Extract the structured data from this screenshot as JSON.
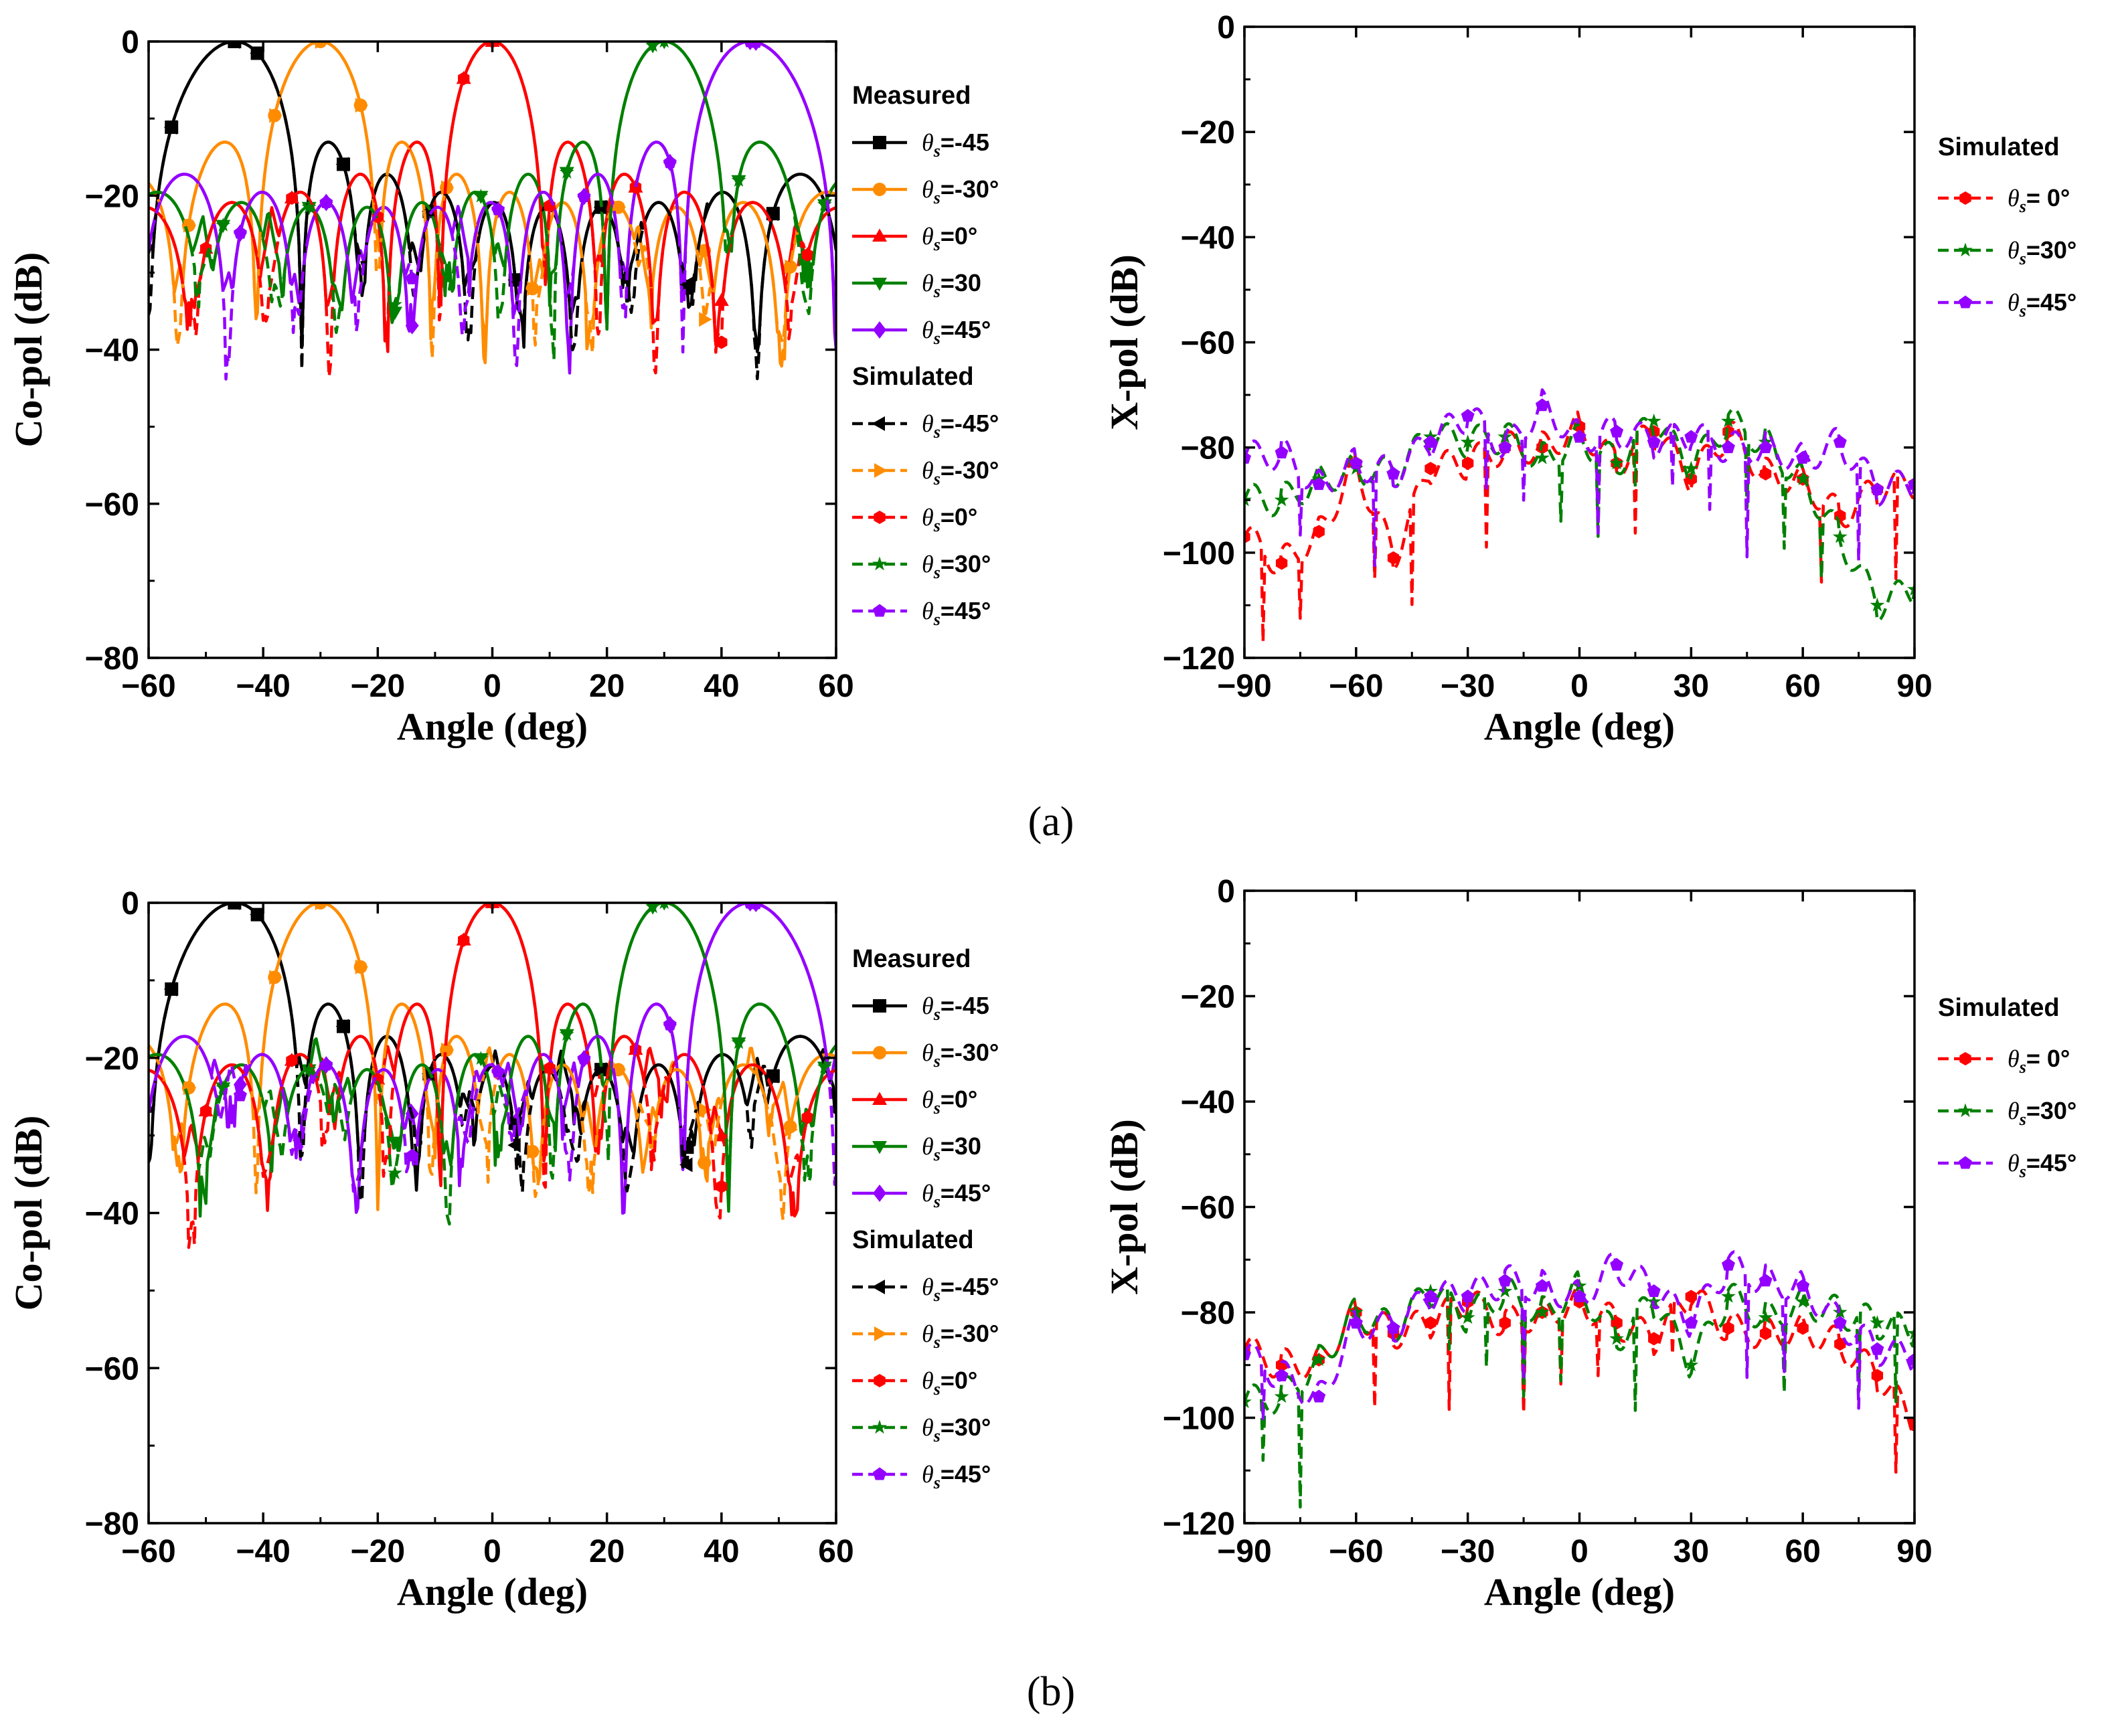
{
  "panel_a_caption": "(a)",
  "panel_b_caption": "(b)",
  "colors": {
    "theta_m45": "#000000",
    "theta_m30": "#ff8c00",
    "theta_0": "#ff0000",
    "theta_30": "#008000",
    "theta_45": "#9400ff"
  },
  "chart_data": [
    {
      "id": "a-copol",
      "type": "line",
      "panel": "(a)",
      "title": "",
      "xlabel": "Angle (deg)",
      "ylabel": "Co-pol (dB)",
      "xlim": [
        -60,
        60
      ],
      "ylim": [
        -80,
        0
      ],
      "xticks": [
        -60,
        -40,
        -20,
        0,
        20,
        40,
        60
      ],
      "yticks": [
        -80,
        -60,
        -40,
        -20,
        0
      ],
      "xtick_labels": [
        "−60",
        "−40",
        "−20",
        "0",
        "20",
        "40",
        "60"
      ],
      "ytick_labels": [
        "−80",
        "−60",
        "−40",
        "−20",
        "0"
      ],
      "legend": {
        "position": "right",
        "groups": [
          {
            "title": "Measured",
            "entries": [
              {
                "symbol": "θ",
                "sub": "s",
                "label": "=-45",
                "color": "#000000",
                "marker": "square",
                "dash": "solid"
              },
              {
                "symbol": "θ",
                "sub": "s",
                "label": "=-30°",
                "color": "#ff8c00",
                "marker": "circle",
                "dash": "solid"
              },
              {
                "symbol": "θ",
                "sub": "s",
                "label": "=0°",
                "color": "#ff0000",
                "marker": "triangle-up",
                "dash": "solid"
              },
              {
                "symbol": "θ",
                "sub": "s",
                "label": "=30",
                "color": "#008000",
                "marker": "triangle-down",
                "dash": "solid"
              },
              {
                "symbol": "θ",
                "sub": "s",
                "label": "=45°",
                "color": "#9400ff",
                "marker": "diamond",
                "dash": "solid"
              }
            ]
          },
          {
            "title": "Simulated",
            "entries": [
              {
                "symbol": "θ",
                "sub": "s",
                "label": "=-45°",
                "color": "#000000",
                "marker": "triangle-left",
                "dash": "dashed"
              },
              {
                "symbol": "θ",
                "sub": "s",
                "label": "=-30°",
                "color": "#ff8c00",
                "marker": "triangle-right",
                "dash": "dashed"
              },
              {
                "symbol": "θ",
                "sub": "s",
                "label": "=0°",
                "color": "#ff0000",
                "marker": "hexagon",
                "dash": "dashed"
              },
              {
                "symbol": "θ",
                "sub": "s",
                "label": "=30°",
                "color": "#008000",
                "marker": "star",
                "dash": "dashed"
              },
              {
                "symbol": "θ",
                "sub": "s",
                "label": "=45°",
                "color": "#9400ff",
                "marker": "pentagon",
                "dash": "dashed"
              }
            ]
          }
        ]
      },
      "series": [
        {
          "name": "Measured θs=-45",
          "color": "#000000",
          "dash": "solid",
          "marker": "square",
          "peak": -45,
          "sidelobe": -27,
          "seed": 1
        },
        {
          "name": "Measured θs=-30°",
          "color": "#ff8c00",
          "dash": "solid",
          "marker": "circle",
          "peak": -30,
          "sidelobe": -29,
          "seed": 2
        },
        {
          "name": "Measured θs=0°",
          "color": "#ff0000",
          "dash": "solid",
          "marker": "triangle-up",
          "peak": 0,
          "sidelobe": -28,
          "seed": 3
        },
        {
          "name": "Measured θs=30",
          "color": "#008000",
          "dash": "solid",
          "marker": "triangle-down",
          "peak": 30,
          "sidelobe": -27,
          "seed": 4
        },
        {
          "name": "Measured θs=45°",
          "color": "#9400ff",
          "dash": "solid",
          "marker": "diamond",
          "peak": 45,
          "sidelobe": -28,
          "seed": 5
        },
        {
          "name": "Simulated θs=-45°",
          "color": "#000000",
          "dash": "dashed",
          "marker": "triangle-left",
          "peak": -45,
          "sidelobe": -30,
          "seed": 6
        },
        {
          "name": "Simulated θs=-30°",
          "color": "#ff8c00",
          "dash": "dashed",
          "marker": "triangle-right",
          "peak": -30,
          "sidelobe": -31,
          "seed": 7
        },
        {
          "name": "Simulated θs=0°",
          "color": "#ff0000",
          "dash": "dashed",
          "marker": "hexagon",
          "peak": 0,
          "sidelobe": -31,
          "seed": 8
        },
        {
          "name": "Simulated θs=30°",
          "color": "#008000",
          "dash": "dashed",
          "marker": "star",
          "peak": 30,
          "sidelobe": -30,
          "seed": 9
        },
        {
          "name": "Simulated θs=45°",
          "color": "#9400ff",
          "dash": "dashed",
          "marker": "pentagon",
          "peak": 45,
          "sidelobe": -30,
          "seed": 10
        }
      ]
    },
    {
      "id": "a-xpol",
      "type": "line",
      "panel": "(a)",
      "title": "",
      "xlabel": "Angle (deg)",
      "ylabel": "X-pol (dB)",
      "xlim": [
        -90,
        90
      ],
      "ylim": [
        -120,
        0
      ],
      "xticks": [
        -90,
        -60,
        -30,
        0,
        30,
        60,
        90
      ],
      "yticks": [
        -120,
        -100,
        -80,
        -60,
        -40,
        -20,
        0
      ],
      "xtick_labels": [
        "−90",
        "−60",
        "−30",
        "0",
        "30",
        "60",
        "90"
      ],
      "ytick_labels": [
        "−120",
        "−100",
        "−80",
        "−60",
        "−40",
        "−20",
        "0"
      ],
      "legend": {
        "position": "right",
        "groups": [
          {
            "title": "Simulated",
            "entries": [
              {
                "symbol": "θ",
                "sub": "s",
                "label": "= 0°",
                "color": "#ff0000",
                "marker": "hexagon",
                "dash": "dashed"
              },
              {
                "symbol": "θ",
                "sub": "s",
                "label": "=30°",
                "color": "#008000",
                "marker": "star",
                "dash": "dashed"
              },
              {
                "symbol": "θ",
                "sub": "s",
                "label": "=45°",
                "color": "#9400ff",
                "marker": "pentagon",
                "dash": "dashed"
              }
            ]
          }
        ]
      },
      "series": [
        {
          "name": "Simulated θs=0°",
          "color": "#ff0000",
          "dash": "dashed",
          "marker": "hexagon",
          "seed": 11,
          "x": [
            -90,
            -80,
            -70,
            -60,
            -50,
            -40,
            -30,
            -20,
            -10,
            0,
            10,
            20,
            30,
            40,
            50,
            60,
            70,
            80,
            90
          ],
          "y": [
            -97,
            -102,
            -96,
            -83,
            -101,
            -84,
            -83,
            -80,
            -80,
            -76,
            -83,
            -77,
            -86,
            -77,
            -85,
            -86,
            -93,
            -88,
            -87
          ]
        },
        {
          "name": "Simulated θs=30°",
          "color": "#008000",
          "dash": "dashed",
          "marker": "star",
          "seed": 12,
          "x": [
            -90,
            -80,
            -70,
            -60,
            -50,
            -40,
            -30,
            -20,
            -10,
            0,
            10,
            20,
            30,
            40,
            50,
            60,
            70,
            80,
            90
          ],
          "y": [
            -90,
            -90,
            -86,
            -84,
            -85,
            -78,
            -79,
            -78,
            -82,
            -78,
            -83,
            -75,
            -84,
            -75,
            -79,
            -86,
            -97,
            -110,
            -107
          ]
        },
        {
          "name": "Simulated θs=45°",
          "color": "#9400ff",
          "dash": "dashed",
          "marker": "pentagon",
          "seed": 13,
          "x": [
            -90,
            -80,
            -70,
            -60,
            -50,
            -40,
            -30,
            -20,
            -10,
            0,
            10,
            20,
            30,
            40,
            50,
            60,
            70,
            80,
            90
          ],
          "y": [
            -82,
            -81,
            -87,
            -83,
            -85,
            -79,
            -74,
            -80,
            -72,
            -78,
            -77,
            -79,
            -78,
            -80,
            -80,
            -82,
            -79,
            -88,
            -87
          ]
        }
      ]
    },
    {
      "id": "b-copol",
      "type": "line",
      "panel": "(b)",
      "title": "",
      "xlabel": "Angle (deg)",
      "ylabel": "Co-pol (dB)",
      "xlim": [
        -60,
        60
      ],
      "ylim": [
        -80,
        0
      ],
      "xticks": [
        -60,
        -40,
        -20,
        0,
        20,
        40,
        60
      ],
      "yticks": [
        -80,
        -60,
        -40,
        -20,
        0
      ],
      "xtick_labels": [
        "−60",
        "−40",
        "−20",
        "0",
        "20",
        "40",
        "60"
      ],
      "ytick_labels": [
        "−80",
        "−60",
        "−40",
        "−20",
        "0"
      ],
      "legend": {
        "position": "right",
        "groups": [
          {
            "title": "Measured",
            "entries": [
              {
                "symbol": "θ",
                "sub": "s",
                "label": "=-45",
                "color": "#000000",
                "marker": "square",
                "dash": "solid"
              },
              {
                "symbol": "θ",
                "sub": "s",
                "label": "=-30°",
                "color": "#ff8c00",
                "marker": "circle",
                "dash": "solid"
              },
              {
                "symbol": "θ",
                "sub": "s",
                "label": "=0°",
                "color": "#ff0000",
                "marker": "triangle-up",
                "dash": "solid"
              },
              {
                "symbol": "θ",
                "sub": "s",
                "label": "=30",
                "color": "#008000",
                "marker": "triangle-down",
                "dash": "solid"
              },
              {
                "symbol": "θ",
                "sub": "s",
                "label": "=45°",
                "color": "#9400ff",
                "marker": "diamond",
                "dash": "solid"
              }
            ]
          },
          {
            "title": "Simulated",
            "entries": [
              {
                "symbol": "θ",
                "sub": "s",
                "label": "=-45°",
                "color": "#000000",
                "marker": "triangle-left",
                "dash": "dashed"
              },
              {
                "symbol": "θ",
                "sub": "s",
                "label": "=-30°",
                "color": "#ff8c00",
                "marker": "triangle-right",
                "dash": "dashed"
              },
              {
                "symbol": "θ",
                "sub": "s",
                "label": "=0°",
                "color": "#ff0000",
                "marker": "hexagon",
                "dash": "dashed"
              },
              {
                "symbol": "θ",
                "sub": "s",
                "label": "=30°",
                "color": "#008000",
                "marker": "star",
                "dash": "dashed"
              },
              {
                "symbol": "θ",
                "sub": "s",
                "label": "=45°",
                "color": "#9400ff",
                "marker": "pentagon",
                "dash": "dashed"
              }
            ]
          }
        ]
      },
      "series": [
        {
          "name": "Measured θs=-45",
          "color": "#000000",
          "dash": "solid",
          "marker": "square",
          "peak": -45,
          "sidelobe": -24,
          "seed": 21
        },
        {
          "name": "Measured θs=-30°",
          "color": "#ff8c00",
          "dash": "solid",
          "marker": "circle",
          "peak": -30,
          "sidelobe": -25,
          "seed": 22
        },
        {
          "name": "Measured θs=0°",
          "color": "#ff0000",
          "dash": "solid",
          "marker": "triangle-up",
          "peak": 0,
          "sidelobe": -24,
          "seed": 23
        },
        {
          "name": "Measured θs=30",
          "color": "#008000",
          "dash": "solid",
          "marker": "triangle-down",
          "peak": 30,
          "sidelobe": -24,
          "seed": 24
        },
        {
          "name": "Measured θs=45°",
          "color": "#9400ff",
          "dash": "solid",
          "marker": "diamond",
          "peak": 45,
          "sidelobe": -25,
          "seed": 25
        },
        {
          "name": "Simulated θs=-45°",
          "color": "#000000",
          "dash": "dashed",
          "marker": "triangle-left",
          "peak": -45,
          "sidelobe": -27,
          "seed": 26
        },
        {
          "name": "Simulated θs=-30°",
          "color": "#ff8c00",
          "dash": "dashed",
          "marker": "triangle-right",
          "peak": -30,
          "sidelobe": -27,
          "seed": 27
        },
        {
          "name": "Simulated θs=0°",
          "color": "#ff0000",
          "dash": "dashed",
          "marker": "hexagon",
          "peak": 0,
          "sidelobe": -27,
          "seed": 28
        },
        {
          "name": "Simulated θs=30°",
          "color": "#008000",
          "dash": "dashed",
          "marker": "star",
          "peak": 30,
          "sidelobe": -27,
          "seed": 29
        },
        {
          "name": "Simulated θs=45°",
          "color": "#9400ff",
          "dash": "dashed",
          "marker": "pentagon",
          "peak": 45,
          "sidelobe": -27,
          "seed": 30
        }
      ]
    },
    {
      "id": "b-xpol",
      "type": "line",
      "panel": "(b)",
      "title": "",
      "xlabel": "Angle (deg)",
      "ylabel": "X-pol (dB)",
      "xlim": [
        -90,
        90
      ],
      "ylim": [
        -120,
        0
      ],
      "xticks": [
        -90,
        -60,
        -30,
        0,
        30,
        60,
        90
      ],
      "yticks": [
        -120,
        -100,
        -80,
        -60,
        -40,
        -20,
        0
      ],
      "xtick_labels": [
        "−90",
        "−60",
        "−30",
        "0",
        "30",
        "60",
        "90"
      ],
      "ytick_labels": [
        "−120",
        "−100",
        "−80",
        "−60",
        "−40",
        "−20",
        "0"
      ],
      "legend": {
        "position": "right",
        "groups": [
          {
            "title": "Simulated",
            "entries": [
              {
                "symbol": "θ",
                "sub": "s",
                "label": "= 0°",
                "color": "#ff0000",
                "marker": "hexagon",
                "dash": "dashed"
              },
              {
                "symbol": "θ",
                "sub": "s",
                "label": "=30°",
                "color": "#008000",
                "marker": "star",
                "dash": "dashed"
              },
              {
                "symbol": "θ",
                "sub": "s",
                "label": "=45°",
                "color": "#9400ff",
                "marker": "pentagon",
                "dash": "dashed"
              }
            ]
          }
        ]
      },
      "series": [
        {
          "name": "Simulated θs=0°",
          "color": "#ff0000",
          "dash": "dashed",
          "marker": "hexagon",
          "seed": 31,
          "x": [
            -90,
            -80,
            -70,
            -60,
            -50,
            -40,
            -30,
            -20,
            -10,
            0,
            10,
            20,
            30,
            40,
            50,
            60,
            70,
            80,
            90
          ],
          "y": [
            -87,
            -90,
            -89,
            -80,
            -84,
            -82,
            -78,
            -82,
            -80,
            -78,
            -82,
            -85,
            -77,
            -83,
            -84,
            -83,
            -86,
            -92,
            -101
          ]
        },
        {
          "name": "Simulated θs=30°",
          "color": "#008000",
          "dash": "dashed",
          "marker": "star",
          "seed": 32,
          "x": [
            -90,
            -80,
            -70,
            -60,
            -50,
            -40,
            -30,
            -20,
            -10,
            0,
            10,
            20,
            30,
            40,
            50,
            60,
            70,
            80,
            90
          ],
          "y": [
            -97,
            -96,
            -89,
            -80,
            -83,
            -76,
            -81,
            -76,
            -80,
            -75,
            -85,
            -78,
            -90,
            -77,
            -81,
            -78,
            -80,
            -82,
            -84
          ]
        },
        {
          "name": "Simulated θs=45°",
          "color": "#9400ff",
          "dash": "dashed",
          "marker": "pentagon",
          "seed": 33,
          "x": [
            -90,
            -80,
            -70,
            -60,
            -50,
            -40,
            -30,
            -20,
            -10,
            0,
            10,
            20,
            30,
            40,
            50,
            60,
            70,
            80,
            90
          ],
          "y": [
            -88,
            -92,
            -96,
            -82,
            -83,
            -77,
            -77,
            -74,
            -75,
            -77,
            -71,
            -76,
            -82,
            -71,
            -74,
            -75,
            -82,
            -87,
            -89
          ]
        }
      ]
    }
  ]
}
